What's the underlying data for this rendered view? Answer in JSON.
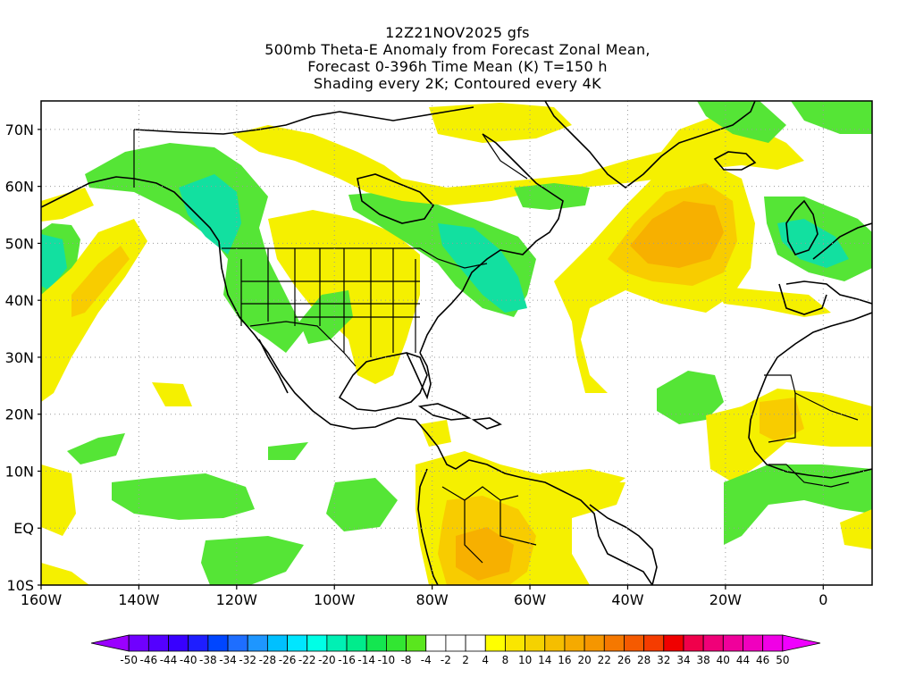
{
  "title": {
    "line1": "12Z21NOV2025 gfs",
    "line2": "500mb Theta-E Anomaly from Forecast Zonal Mean,",
    "line3": "Forecast 0-396h Time Mean (K) T=150 h",
    "line4": "Shading every 2K; Contoured every 4K"
  },
  "map": {
    "lon_range": [
      -160,
      10
    ],
    "lat_range": [
      -10,
      75
    ],
    "lat_ticks": [
      {
        "value": 70,
        "label": "70N"
      },
      {
        "value": 60,
        "label": "60N"
      },
      {
        "value": 50,
        "label": "50N"
      },
      {
        "value": 40,
        "label": "40N"
      },
      {
        "value": 30,
        "label": "30N"
      },
      {
        "value": 20,
        "label": "20N"
      },
      {
        "value": 10,
        "label": "10N"
      },
      {
        "value": 0,
        "label": "EQ"
      },
      {
        "value": -10,
        "label": "10S"
      }
    ],
    "lon_ticks": [
      {
        "value": -160,
        "label": "160W"
      },
      {
        "value": -140,
        "label": "140W"
      },
      {
        "value": -120,
        "label": "120W"
      },
      {
        "value": -100,
        "label": "100W"
      },
      {
        "value": -80,
        "label": "80W"
      },
      {
        "value": -60,
        "label": "60W"
      },
      {
        "value": -40,
        "label": "40W"
      },
      {
        "value": -20,
        "label": "20W"
      },
      {
        "value": 0,
        "label": "0"
      }
    ],
    "grid": "dotted",
    "colors": {
      "green_light": "#55e536",
      "green": "#33d84a",
      "teal": "#12e0a0",
      "yellow": "#f5f000",
      "gold": "#f8cc00",
      "orange_light": "#f7b000",
      "orange": "#f59000",
      "coast": "#000000"
    }
  },
  "colorbar": {
    "labels": [
      "-50",
      "-46",
      "-44",
      "-40",
      "-38",
      "-34",
      "-32",
      "-28",
      "-26",
      "-22",
      "-20",
      "-16",
      "-14",
      "-10",
      "-8",
      "-4",
      "-2",
      "2",
      "4",
      "8",
      "10",
      "14",
      "16",
      "20",
      "22",
      "26",
      "28",
      "32",
      "34",
      "38",
      "40",
      "44",
      "46",
      "50"
    ],
    "colors": [
      "#9a00ff",
      "#7000ff",
      "#5400ff",
      "#3800ff",
      "#1e1eff",
      "#0046ff",
      "#1e6eff",
      "#1e96ff",
      "#00c0ff",
      "#00e6ff",
      "#00ffe6",
      "#00f0b4",
      "#00ec8c",
      "#14e650",
      "#32e632",
      "#5ae61e",
      "#ffffff",
      "#ffffff",
      "#ffffff",
      "#ffff00",
      "#fae600",
      "#f5d200",
      "#f5be00",
      "#f5aa00",
      "#f59600",
      "#f57800",
      "#f55a00",
      "#f53c00",
      "#f00000",
      "#f0004b",
      "#f00078",
      "#f0009b",
      "#f000be",
      "#f000e6",
      "#f000ff"
    ]
  }
}
